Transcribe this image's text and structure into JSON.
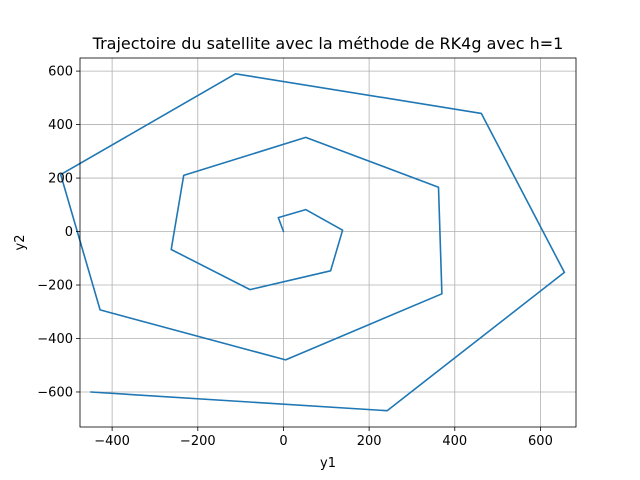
{
  "chart_data": {
    "type": "line",
    "title": "Trajectoire du satellite avec la méthode de RK4g avec h=1",
    "xlabel": "y1",
    "ylabel": "y2",
    "xlim": [
      -475,
      683
    ],
    "ylim": [
      -731,
      649
    ],
    "grid": true,
    "x_ticks": [
      -400,
      -200,
      0,
      200,
      400,
      600
    ],
    "y_ticks": [
      -600,
      -400,
      -200,
      0,
      200,
      400,
      600
    ],
    "x_tick_labels": [
      "−400",
      "−200",
      "0",
      "200",
      "400",
      "600"
    ],
    "y_tick_labels": [
      "−600",
      "−400",
      "−200",
      "0",
      "200",
      "400",
      "600"
    ],
    "series": [
      {
        "color": "#1f77b4",
        "x": [
          0,
          -12,
          52,
          138,
          110,
          -78,
          -262,
          -233,
          52,
          362,
          370,
          5,
          -428,
          -520,
          -112,
          462,
          656,
          242,
          -450
        ],
        "y": [
          0,
          52,
          82,
          5,
          -147,
          -217,
          -67,
          210,
          352,
          166,
          -233,
          -480,
          -293,
          213,
          590,
          442,
          -153,
          -670,
          -600
        ]
      }
    ]
  }
}
